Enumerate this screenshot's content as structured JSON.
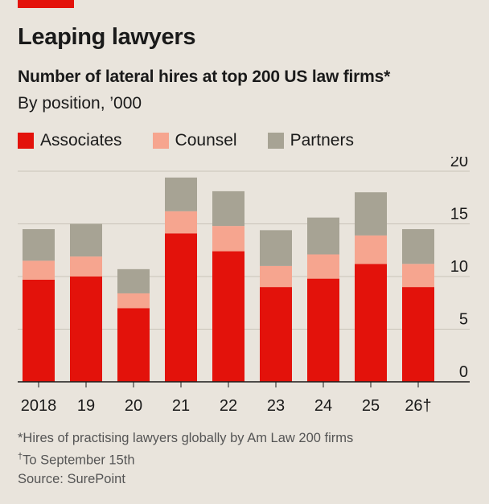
{
  "title": "Leaping lawyers",
  "subtitle": "Number of lateral hires at top 200 US law firms*",
  "subtitle2": "By position, ’000",
  "footnotes": {
    "note1": "*Hires of practising lawyers globally by Am Law 200 firms",
    "note2_mark": "†",
    "note2": "To September 15th",
    "source": "Source: SurePoint"
  },
  "chart_data": {
    "type": "bar",
    "stacked": true,
    "categories": [
      "2018",
      "19",
      "20",
      "21",
      "22",
      "23",
      "24",
      "25",
      "26†"
    ],
    "series": [
      {
        "name": "Associates",
        "color": "#e3120b",
        "values": [
          9.7,
          10.0,
          7.0,
          14.1,
          12.4,
          9.0,
          9.8,
          11.2,
          9.0
        ]
      },
      {
        "name": "Counsel",
        "color": "#f6a58f",
        "values": [
          1.8,
          1.9,
          1.4,
          2.1,
          2.4,
          2.0,
          2.3,
          2.7,
          2.2
        ]
      },
      {
        "name": "Partners",
        "color": "#a7a394",
        "values": [
          3.0,
          3.1,
          2.3,
          3.2,
          3.3,
          3.4,
          3.5,
          4.1,
          3.3
        ]
      }
    ],
    "yticks": [
      0,
      5,
      10,
      15,
      20
    ],
    "ylim": [
      0,
      20
    ],
    "grid": true,
    "legend": "top-left",
    "y_axis_side": "right"
  }
}
